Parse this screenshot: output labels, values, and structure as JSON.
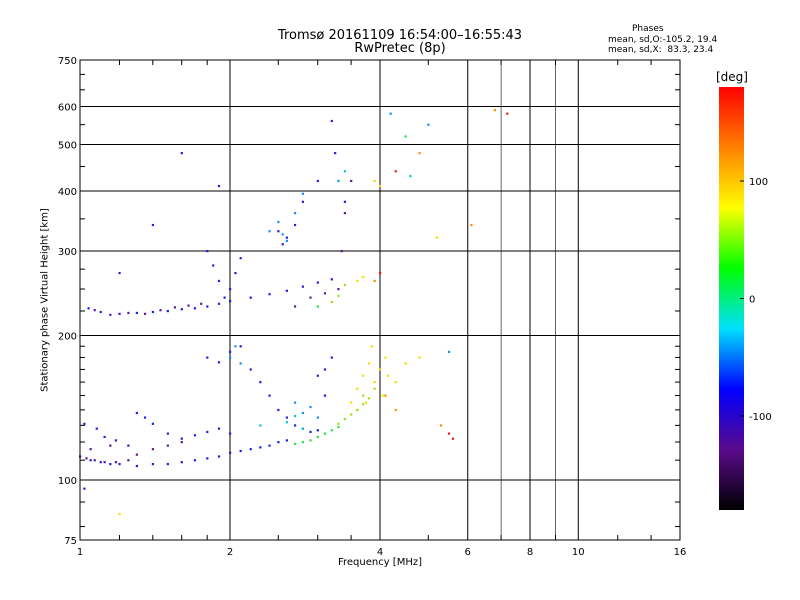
{
  "header": {
    "title_line1": "Tromsø 20161109 16:54:00–16:55:43",
    "title_line2": "RwPretec (8p)",
    "stats_title": "Phases",
    "stats_o": "mean, sd,O:-105.2, 19.4",
    "stats_x": "mean, sd,X:  83.3, 23.4"
  },
  "chart_data": {
    "type": "scatter",
    "xlabel": "Frequency [MHz]",
    "ylabel": "Stationary phase Virtual Height [km]",
    "xscale": "log",
    "yscale": "log",
    "xlim": [
      1,
      16
    ],
    "ylim": [
      75,
      750
    ],
    "xticks": [
      {
        "value": 1,
        "label": "1"
      },
      {
        "value": 2,
        "label": "2"
      },
      {
        "value": 4,
        "label": "4"
      },
      {
        "value": 6,
        "label": "6"
      },
      {
        "value": 8,
        "label": "8"
      },
      {
        "value": 10,
        "label": "10"
      },
      {
        "value": 16,
        "label": "16"
      }
    ],
    "yticks": [
      {
        "value": 75,
        "label": "75"
      },
      {
        "value": 100,
        "label": "100"
      },
      {
        "value": 200,
        "label": "200"
      },
      {
        "value": 300,
        "label": "300"
      },
      {
        "value": 400,
        "label": "400"
      },
      {
        "value": 500,
        "label": "500"
      },
      {
        "value": 600,
        "label": "600"
      },
      {
        "value": 750,
        "label": "750"
      }
    ],
    "major_grid_x": [
      1,
      2,
      4,
      6,
      8,
      10,
      16
    ],
    "minor_grid_x": [
      7,
      9
    ],
    "major_grid_y": [
      100,
      200,
      300,
      400,
      500,
      600
    ],
    "grid": true,
    "colorbar": {
      "label": "[deg]",
      "range": [
        -180,
        180
      ],
      "ticks": [
        {
          "value": 100,
          "label": "100"
        },
        {
          "value": 0,
          "label": "0"
        },
        {
          "value": -100,
          "label": "-100"
        }
      ],
      "colors": [
        "#000000",
        "#5a0a8c",
        "#0000ff",
        "#00e0ff",
        "#00ff00",
        "#ffff00",
        "#ff8000",
        "#ff0000"
      ]
    },
    "series": [
      {
        "color": "#2020e0",
        "points": [
          [
            1.05,
            110
          ],
          [
            1.1,
            109
          ],
          [
            1.15,
            108
          ],
          [
            1.2,
            108
          ],
          [
            1.3,
            107
          ],
          [
            1.4,
            108
          ],
          [
            1.5,
            108
          ],
          [
            1.6,
            109
          ],
          [
            1.7,
            110
          ],
          [
            1.8,
            111
          ],
          [
            1.9,
            112
          ],
          [
            2.0,
            114
          ],
          [
            2.1,
            115
          ],
          [
            2.2,
            116
          ],
          [
            2.3,
            117
          ],
          [
            2.4,
            118
          ],
          [
            2.5,
            120
          ],
          [
            2.6,
            121
          ],
          [
            1.02,
            131
          ],
          [
            1.08,
            128
          ],
          [
            1.12,
            123
          ],
          [
            1.18,
            121
          ],
          [
            1.25,
            118
          ],
          [
            1.3,
            138
          ],
          [
            1.35,
            135
          ],
          [
            1.4,
            131
          ],
          [
            1.5,
            125
          ],
          [
            1.6,
            122
          ],
          [
            1.7,
            124
          ],
          [
            1.8,
            126
          ],
          [
            1.9,
            128
          ],
          [
            2.0,
            125
          ],
          [
            1.04,
            228
          ],
          [
            1.1,
            224
          ],
          [
            1.2,
            222
          ],
          [
            1.3,
            223
          ],
          [
            1.4,
            224
          ],
          [
            1.5,
            225
          ],
          [
            1.6,
            227
          ],
          [
            1.7,
            228
          ],
          [
            1.8,
            230
          ],
          [
            1.9,
            233
          ],
          [
            2.0,
            236
          ],
          [
            2.2,
            240
          ],
          [
            2.4,
            244
          ],
          [
            2.6,
            248
          ],
          [
            2.8,
            253
          ],
          [
            3.0,
            258
          ],
          [
            3.2,
            262
          ],
          [
            1.8,
            180
          ],
          [
            1.9,
            176
          ],
          [
            2.0,
            185
          ],
          [
            2.1,
            190
          ],
          [
            2.2,
            170
          ],
          [
            2.3,
            160
          ],
          [
            2.4,
            150
          ],
          [
            2.5,
            140
          ],
          [
            2.6,
            135
          ],
          [
            2.7,
            130
          ],
          [
            2.8,
            128
          ],
          [
            2.9,
            126
          ],
          [
            3.0,
            127
          ],
          [
            3.1,
            170
          ],
          [
            3.2,
            180
          ],
          [
            2.5,
            330
          ],
          [
            2.55,
            310
          ],
          [
            2.6,
            320
          ],
          [
            2.7,
            340
          ],
          [
            2.8,
            380
          ],
          [
            3.0,
            420
          ],
          [
            1.8,
            300
          ],
          [
            1.85,
            280
          ],
          [
            1.9,
            260
          ],
          [
            1.95,
            240
          ],
          [
            2.0,
            250
          ],
          [
            2.05,
            270
          ],
          [
            2.1,
            290
          ],
          [
            3.2,
            560
          ],
          [
            3.25,
            480
          ],
          [
            3.3,
            420
          ],
          [
            3.4,
            380
          ],
          [
            1.6,
            480
          ],
          [
            1.9,
            410
          ],
          [
            1.4,
            340
          ],
          [
            1.2,
            270
          ],
          [
            1.02,
            96
          ],
          [
            3.0,
            165
          ],
          [
            3.1,
            150
          ]
        ]
      },
      {
        "color": "#5a1a9c",
        "points": [
          [
            1.0,
            112
          ],
          [
            1.03,
            111
          ],
          [
            1.07,
            110
          ],
          [
            1.12,
            109
          ],
          [
            1.18,
            109
          ],
          [
            1.25,
            110
          ],
          [
            1.3,
            113
          ],
          [
            1.4,
            116
          ],
          [
            1.5,
            118
          ],
          [
            1.6,
            120
          ],
          [
            1.07,
            226
          ],
          [
            1.15,
            221
          ],
          [
            1.25,
            223
          ],
          [
            1.35,
            222
          ],
          [
            1.45,
            226
          ],
          [
            1.55,
            229
          ],
          [
            1.65,
            231
          ],
          [
            1.75,
            233
          ],
          [
            1.05,
            116
          ],
          [
            1.15,
            118
          ],
          [
            2.7,
            230
          ],
          [
            2.9,
            240
          ],
          [
            3.1,
            245
          ],
          [
            3.3,
            250
          ],
          [
            3.35,
            300
          ],
          [
            3.4,
            360
          ],
          [
            3.5,
            420
          ]
        ]
      },
      {
        "color": "#1a8cff",
        "points": [
          [
            2.4,
            330
          ],
          [
            2.5,
            345
          ],
          [
            2.55,
            325
          ],
          [
            2.6,
            315
          ],
          [
            2.7,
            360
          ],
          [
            2.8,
            395
          ],
          [
            2.0,
            180
          ],
          [
            2.05,
            190
          ],
          [
            2.1,
            175
          ],
          [
            2.7,
            145
          ],
          [
            2.8,
            138
          ],
          [
            2.9,
            142
          ],
          [
            3.0,
            135
          ],
          [
            4.2,
            580
          ],
          [
            5.0,
            550
          ],
          [
            5.5,
            185
          ]
        ]
      },
      {
        "color": "#00c8c8",
        "points": [
          [
            2.6,
            132
          ],
          [
            2.7,
            136
          ],
          [
            2.8,
            128
          ],
          [
            3.3,
            420
          ],
          [
            3.4,
            440
          ],
          [
            2.3,
            130
          ],
          [
            4.6,
            430
          ]
        ]
      },
      {
        "color": "#30e040",
        "points": [
          [
            2.7,
            119
          ],
          [
            2.8,
            120
          ],
          [
            2.9,
            121
          ],
          [
            3.0,
            123
          ],
          [
            3.1,
            125
          ],
          [
            3.2,
            127
          ],
          [
            3.3,
            129
          ],
          [
            4.5,
            520
          ],
          [
            3.0,
            230
          ]
        ]
      },
      {
        "color": "#a0e020",
        "points": [
          [
            3.3,
            131
          ],
          [
            3.4,
            134
          ],
          [
            3.5,
            137
          ],
          [
            3.6,
            140
          ],
          [
            3.7,
            144
          ],
          [
            3.8,
            148
          ],
          [
            3.9,
            155
          ],
          [
            3.2,
            235
          ],
          [
            3.3,
            242
          ],
          [
            3.4,
            255
          ],
          [
            3.6,
            140
          ],
          [
            3.7,
            150
          ]
        ]
      },
      {
        "color": "#f0e000",
        "points": [
          [
            3.5,
            145
          ],
          [
            3.6,
            155
          ],
          [
            3.7,
            165
          ],
          [
            3.8,
            175
          ],
          [
            3.9,
            160
          ],
          [
            4.0,
            170
          ],
          [
            4.1,
            180
          ],
          [
            3.6,
            260
          ],
          [
            3.7,
            265
          ],
          [
            3.9,
            420
          ],
          [
            4.0,
            410
          ],
          [
            4.8,
            180
          ],
          [
            5.2,
            320
          ],
          [
            4.3,
            160
          ],
          [
            4.5,
            175
          ],
          [
            1.2,
            85
          ],
          [
            3.75,
            145
          ],
          [
            3.85,
            190
          ],
          [
            4.05,
            150
          ],
          [
            4.15,
            165
          ]
        ]
      },
      {
        "color": "#ff8c00",
        "points": [
          [
            3.9,
            260
          ],
          [
            4.0,
            270
          ],
          [
            4.1,
            150
          ],
          [
            4.3,
            140
          ],
          [
            6.1,
            340
          ],
          [
            6.8,
            590
          ],
          [
            4.8,
            480
          ],
          [
            5.3,
            130
          ]
        ]
      },
      {
        "color": "#e02020",
        "points": [
          [
            5.5,
            125
          ],
          [
            5.6,
            122
          ],
          [
            4.3,
            440
          ],
          [
            7.2,
            580
          ],
          [
            4.0,
            270
          ]
        ]
      }
    ]
  }
}
